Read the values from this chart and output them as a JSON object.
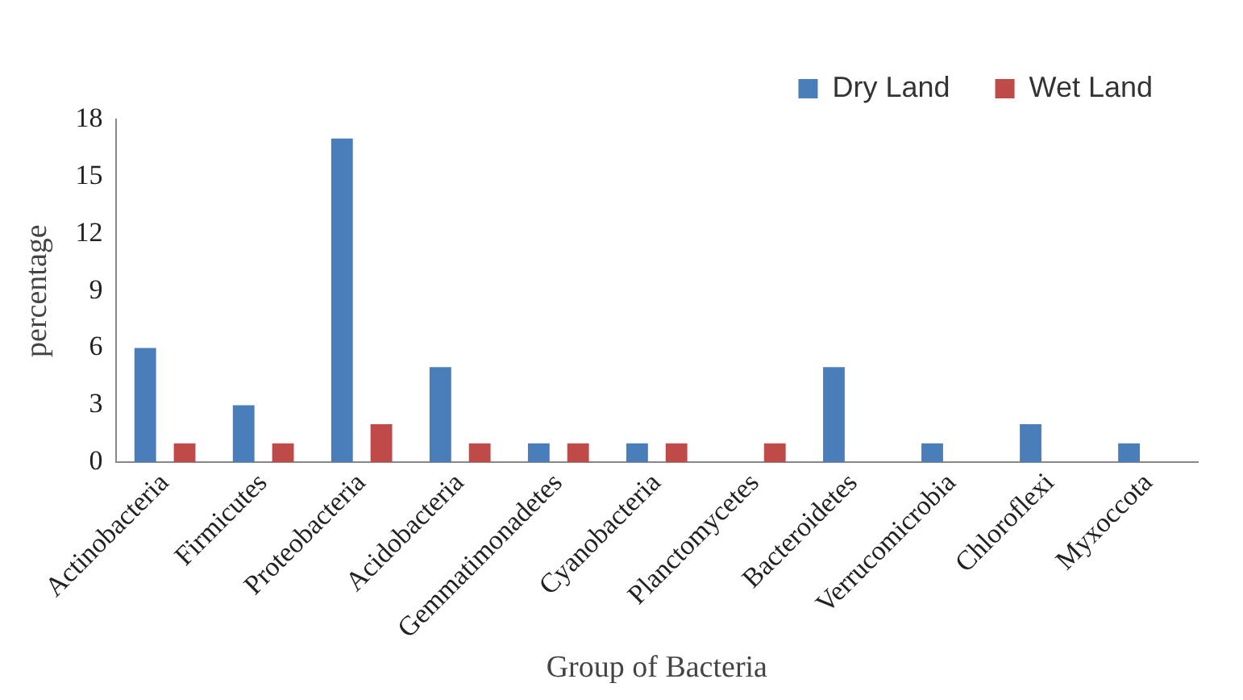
{
  "chart_data": {
    "type": "bar",
    "xlabel": "Group of Bacteria",
    "ylabel": "percentage",
    "categories": [
      "Actinobacteria",
      "Firmicutes",
      "Proteobacteria",
      "Acidobacteria",
      "Gemmatimonadetes",
      "Cyanobacteria",
      "Planctomycetes",
      "Bacteroidetes",
      "Verrucomicrobia",
      "Chloroflexi",
      "Myxoccota"
    ],
    "series": [
      {
        "name": "Dry Land",
        "color": "#4a7ebb",
        "values": [
          6,
          3,
          17,
          5,
          1,
          1,
          0,
          5,
          1,
          2,
          1
        ]
      },
      {
        "name": "Wet Land",
        "color": "#be4b48",
        "values": [
          1,
          1,
          2,
          1,
          1,
          1,
          1,
          0,
          0,
          0,
          0
        ]
      }
    ],
    "ylim": [
      0,
      18
    ],
    "yticks": [
      0,
      3,
      6,
      9,
      12,
      15,
      18
    ],
    "grid": false,
    "legend": "top right"
  }
}
